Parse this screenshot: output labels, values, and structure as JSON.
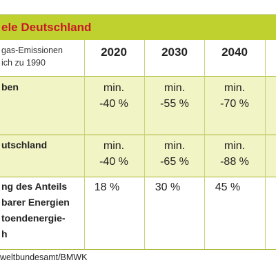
{
  "title": "ele Deutschland",
  "header": {
    "label_lines": [
      "gas-Emissionen",
      "ich zu 1990"
    ],
    "years": [
      "2020",
      "2030",
      "2040"
    ]
  },
  "rows": [
    {
      "label_lines": [
        "ben"
      ],
      "values": [
        [
          "min.",
          "-40 %"
        ],
        [
          "min.",
          "-55 %"
        ],
        [
          "min.",
          "-70 %"
        ]
      ]
    },
    {
      "label_lines": [
        "utschland"
      ],
      "values": [
        [
          "min.",
          "-40 %"
        ],
        [
          "min.",
          "-65 %"
        ],
        [
          "min.",
          "-88 %"
        ]
      ]
    },
    {
      "label_lines": [
        "ng des Anteils",
        "barer Energien",
        "toendenergie-",
        "h"
      ],
      "values": [
        [
          "18 %"
        ],
        [
          "30 %"
        ],
        [
          "45 %"
        ]
      ]
    }
  ],
  "source": "weltbundesamt/BMWK",
  "colors": {
    "title_bg": "#bfd12f",
    "title_text": "#c81826",
    "row_light": "#f1f4c4"
  }
}
